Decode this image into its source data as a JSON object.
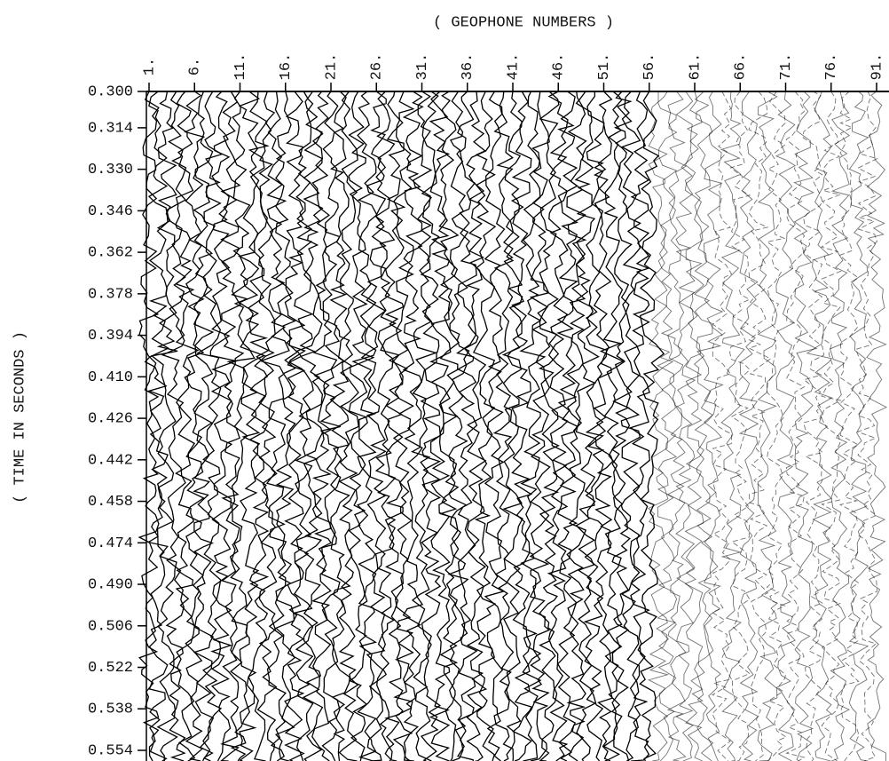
{
  "chart_data": {
    "type": "seismic",
    "title": "( GEOPHONE NUMBERS )",
    "y_label": "( TIME IN SECONDS )",
    "categories": [
      "1.",
      "6.",
      "11.",
      "16.",
      "21.",
      "26.",
      "31.",
      "36.",
      "41.",
      "46.",
      "51.",
      "56.",
      "61.",
      "66.",
      "71.",
      "76.",
      "91."
    ],
    "ylim": [
      0.3,
      0.554
    ],
    "yticks": [
      {
        "value": 0.3,
        "label": "0.300"
      },
      {
        "value": 0.314,
        "label": "0.314"
      },
      {
        "value": 0.33,
        "label": "0.330"
      },
      {
        "value": 0.346,
        "label": "0.346"
      },
      {
        "value": 0.362,
        "label": "0.362"
      },
      {
        "value": 0.378,
        "label": "0.378"
      },
      {
        "value": 0.394,
        "label": "0.394"
      },
      {
        "value": 0.41,
        "label": "0.410"
      },
      {
        "value": 0.426,
        "label": "0.426"
      },
      {
        "value": 0.442,
        "label": "0.442"
      },
      {
        "value": 0.458,
        "label": "0.458"
      },
      {
        "value": 0.474,
        "label": "0.474"
      },
      {
        "value": 0.49,
        "label": "0.490"
      },
      {
        "value": 0.506,
        "label": "0.506"
      },
      {
        "value": 0.522,
        "label": "0.522"
      },
      {
        "value": 0.538,
        "label": "0.538"
      },
      {
        "value": 0.554,
        "label": "0.554"
      }
    ]
  }
}
